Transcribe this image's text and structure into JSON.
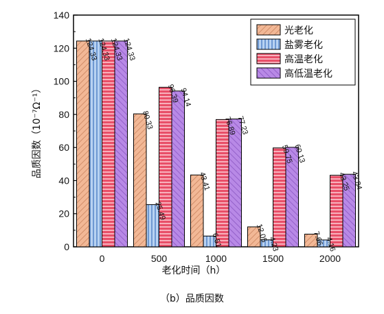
{
  "chart_data": {
    "type": "bar",
    "categories": [
      "0",
      "500",
      "1000",
      "1500",
      "2000"
    ],
    "series": [
      {
        "name": "光老化",
        "values": [
          124.33,
          80.33,
          43.41,
          12.05,
          7.66
        ],
        "labels": [
          "124.33",
          "80.33",
          "43.41",
          "12.05",
          "7.66"
        ],
        "color": "#f2b896",
        "hatch": "#c9835e"
      },
      {
        "name": "盐雾老化",
        "values": [
          124.33,
          25.49,
          6.51,
          4.23,
          4.16
        ],
        "labels": [
          "124.33",
          "25.49",
          "6.51",
          "4.23",
          "4.16"
        ],
        "color": "#b8d2f2",
        "hatch": "#4d7fc4"
      },
      {
        "name": "高温老化",
        "values": [
          124.33,
          96.39,
          76.89,
          59.75,
          43.25
        ],
        "labels": [
          "124.33",
          "96.39",
          "76.89",
          "59.75",
          "43.25"
        ],
        "color": "#e84f68",
        "hatch": "#ffd9df"
      },
      {
        "name": "高低温老化",
        "values": [
          124.33,
          94.14,
          77.23,
          60.13,
          43.84
        ],
        "labels": [
          "124.33",
          "94.14",
          "77.23",
          "60.13",
          "43.84"
        ],
        "color": "#b889e6",
        "hatch": "#8a56c2"
      }
    ],
    "xlabel": "老化时间（h）",
    "ylabel": "品质因数（10⁻⁷Ω⁻¹）",
    "ylim": [
      0,
      140
    ],
    "yticks": [
      "0",
      "20",
      "40",
      "60",
      "80",
      "100",
      "120",
      "140"
    ],
    "legend_position": "top-right",
    "grid": false
  },
  "caption": "（b）品质因数"
}
